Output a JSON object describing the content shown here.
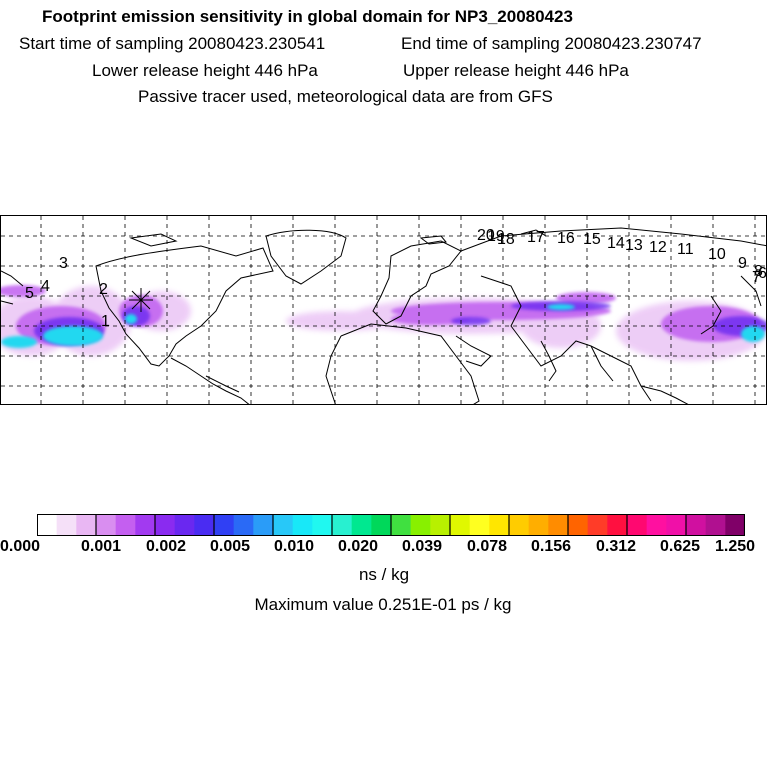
{
  "header": {
    "title": "Footprint emission sensitivity in global domain for NP3_20080423",
    "line2_start": "Start time of sampling 20080423.230541",
    "line2_end": "End time of sampling 20080423.230747",
    "line3_lower": "Lower release height  446 hPa",
    "line3_upper": "Upper release height  446 hPa",
    "line4": "Passive tracer used, meteorological data are from GFS"
  },
  "map": {
    "release_marker": "asterisk",
    "trajectory_labels": [
      "1",
      "2",
      "3",
      "4",
      "5",
      "6",
      "7",
      "8",
      "9",
      "10",
      "11",
      "12",
      "13",
      "14",
      "15",
      "16",
      "17",
      "18",
      "19",
      "20"
    ]
  },
  "colorbar": {
    "labels": [
      "0.000",
      "0.001",
      "0.002",
      "0.005",
      "0.010",
      "0.020",
      "0.039",
      "0.078",
      "0.156",
      "0.312",
      "0.625",
      "1.250"
    ],
    "colors": [
      "#ffffff",
      "#f5e0f8",
      "#e9b7f3",
      "#d98ef0",
      "#c45ff0",
      "#a23af0",
      "#8a2bf0",
      "#6a28f0",
      "#4a2cf2",
      "#3040f4",
      "#2a6af6",
      "#2a9cf8",
      "#28c8f8",
      "#18e8f8",
      "#20f8f0",
      "#28f0d0",
      "#00e890",
      "#00d85a",
      "#40e040",
      "#88f000",
      "#b8f000",
      "#e0f800",
      "#ffff20",
      "#ffe600",
      "#ffcc00",
      "#ffae00",
      "#ff8c00",
      "#ff6400",
      "#ff3c28",
      "#ff1040",
      "#ff0870",
      "#ff10a0",
      "#f010a8",
      "#d010a0",
      "#b01090",
      "#800068"
    ],
    "units": "ns / kg",
    "maximum": "Maximum value  0.251E-01 ps / kg"
  }
}
